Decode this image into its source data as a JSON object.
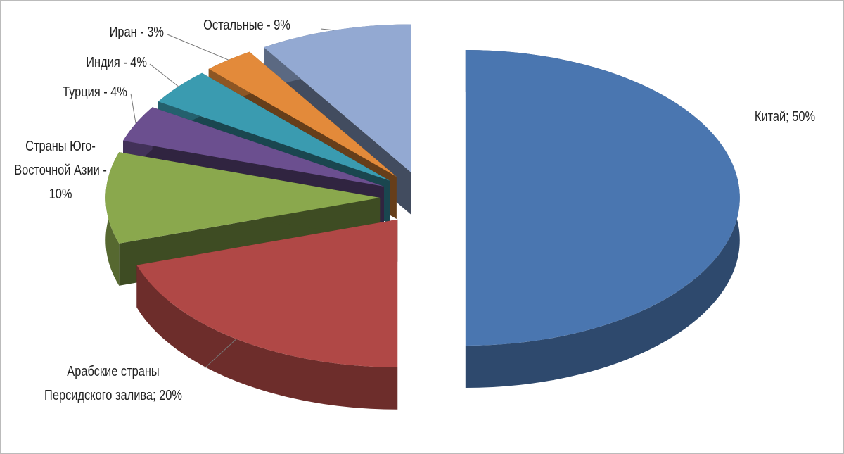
{
  "chart_data": {
    "type": "pie3d",
    "values": [
      50,
      20,
      10,
      4,
      4,
      3,
      9
    ],
    "value_labels": [
      "Китай; 50%",
      "Арабские страны Персидского залива; 20%",
      "Страны Юго-Восточной Азии - 10%",
      "Турция - 4%",
      "Индия - 4%",
      "Иран - 3%",
      "Остальные - 9%"
    ],
    "colors": [
      "#4a76b0",
      "#b04846",
      "#8aa84d",
      "#6b4f8f",
      "#3a9bb0",
      "#e38a3a",
      "#93a9d2"
    ]
  }
}
